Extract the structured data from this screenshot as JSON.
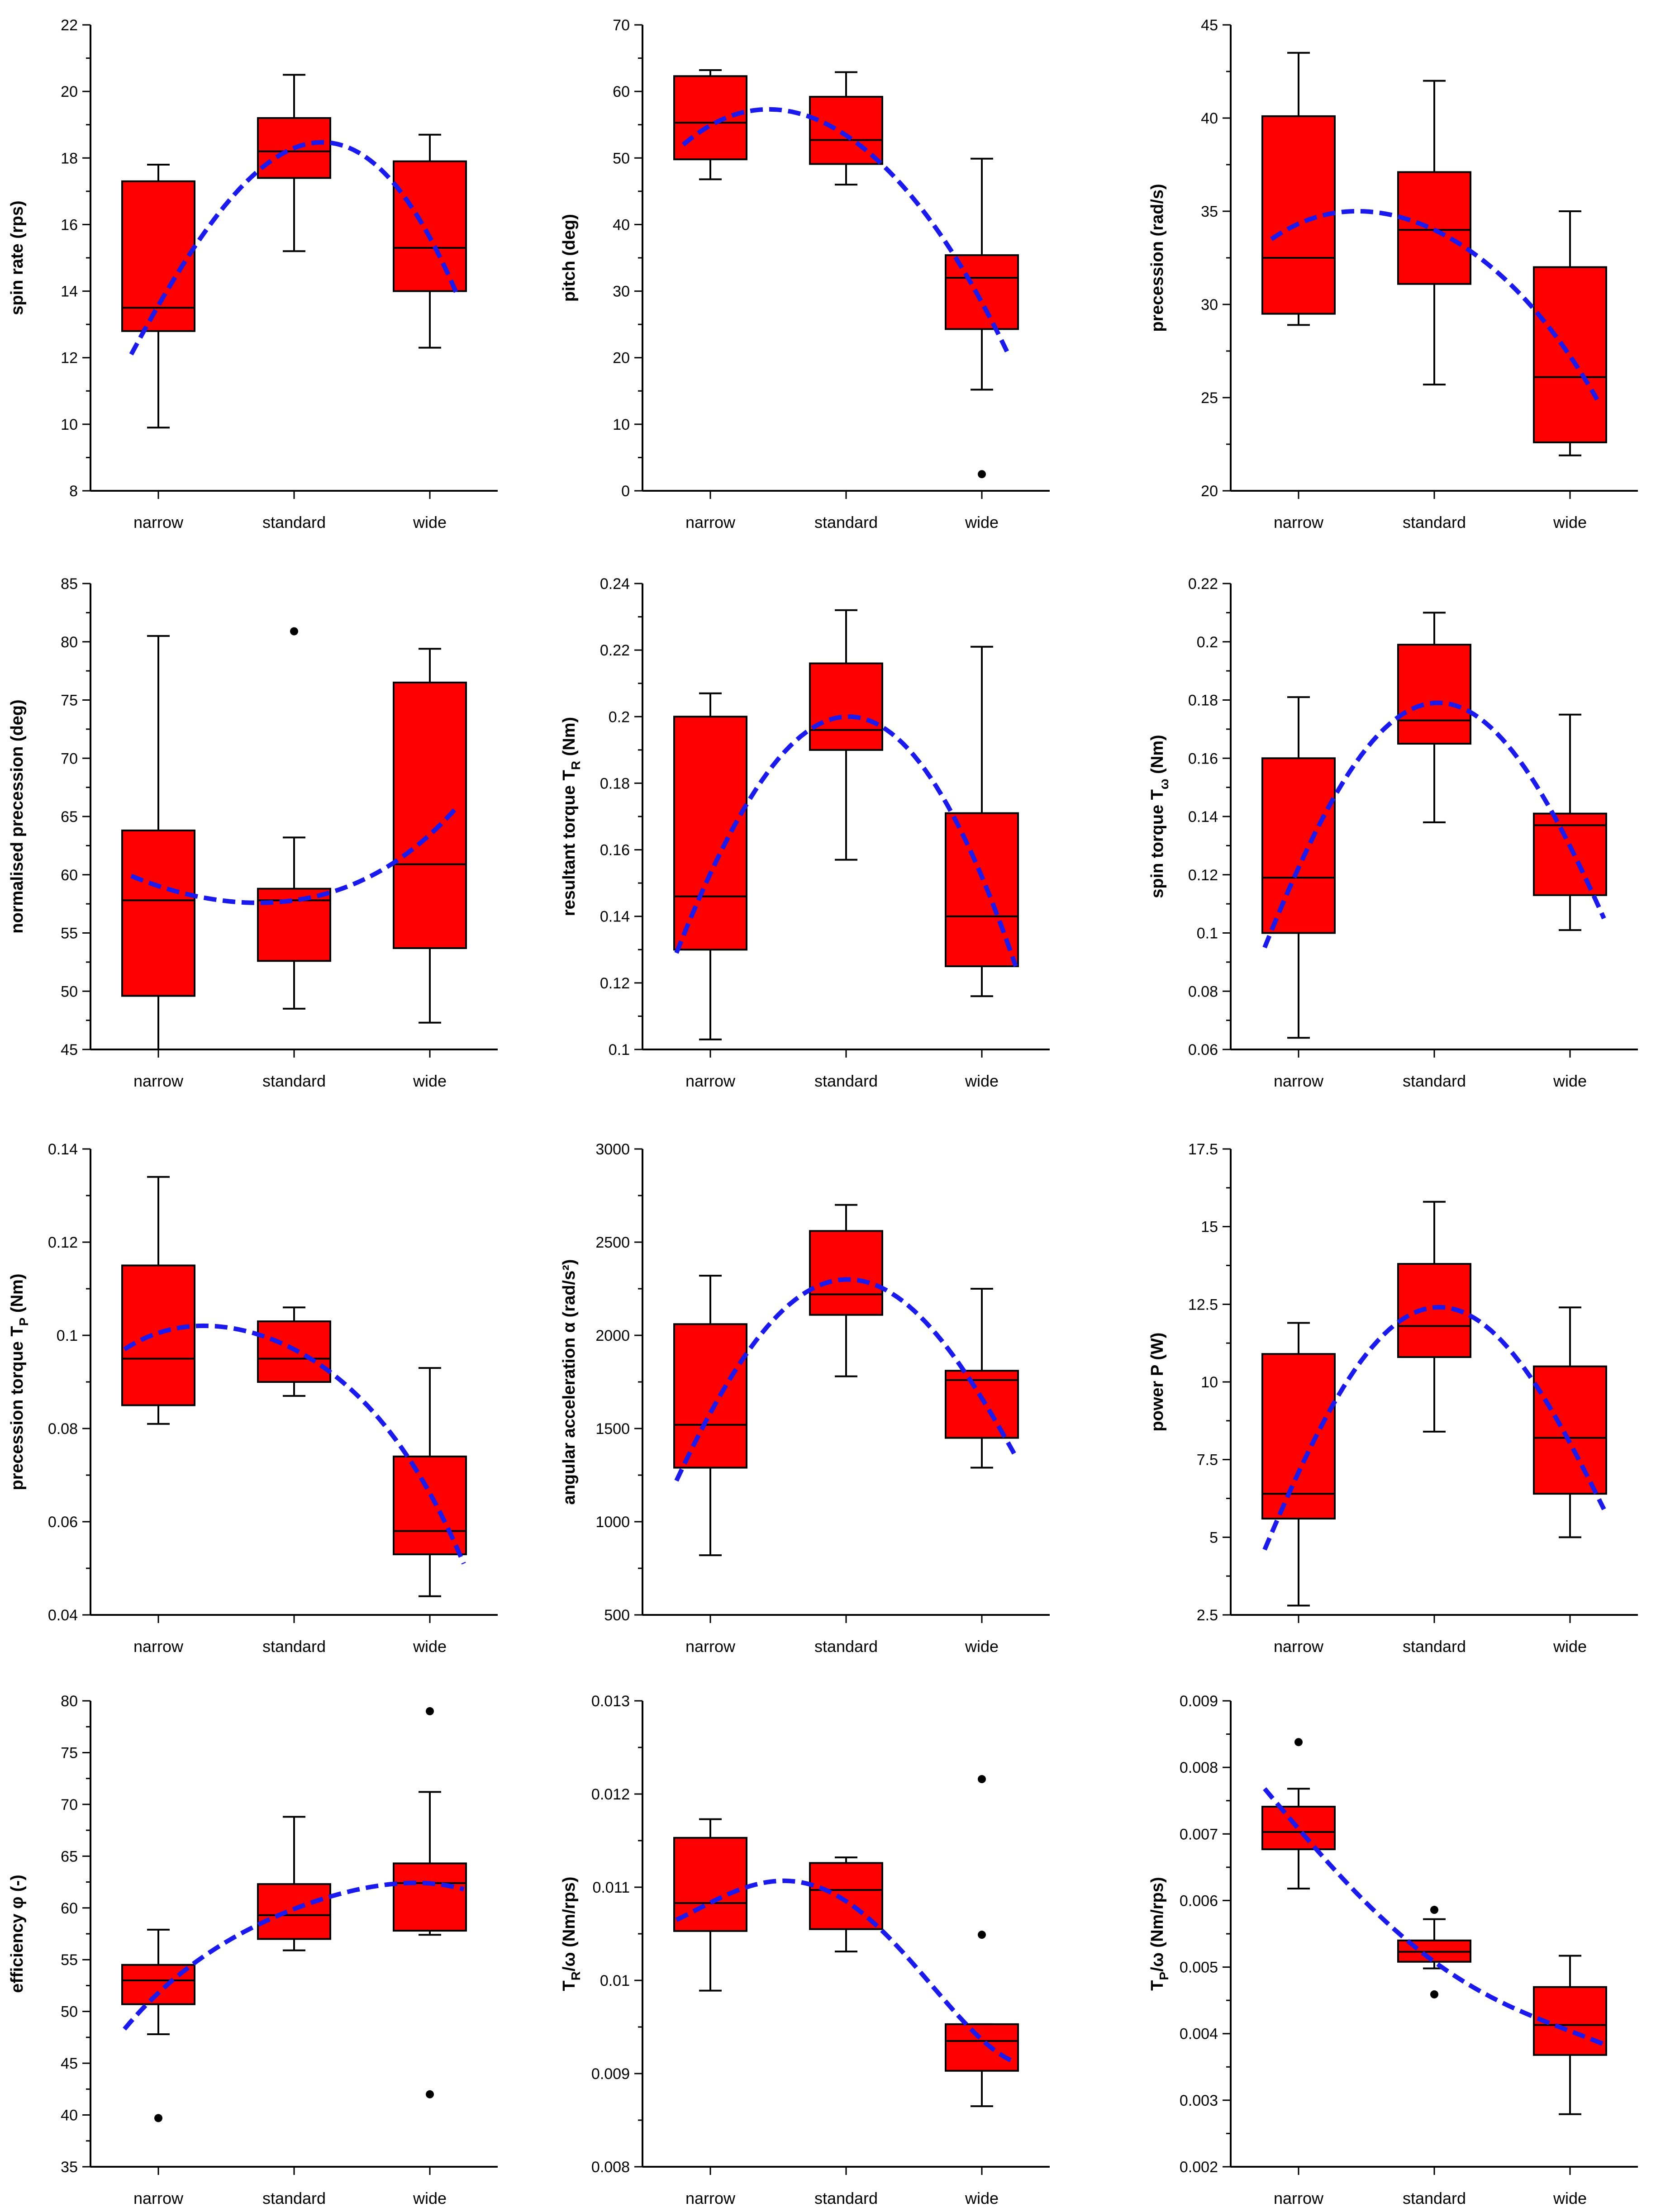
{
  "colors": {
    "box_fill": "#ff0000",
    "box_stroke": "#000000",
    "fit_line": "#1a1aee",
    "outlier": "#000000"
  },
  "chart_data": [
    {
      "type": "box",
      "id": "spin-rate",
      "ylabel": {
        "main": "spin rate (rps)"
      },
      "ylim": [
        8,
        22
      ],
      "yticks": [
        8,
        10,
        12,
        14,
        16,
        18,
        20,
        22
      ],
      "categories": [
        "narrow",
        "standard",
        "wide"
      ],
      "boxes": [
        {
          "min": 9.9,
          "q1": 12.8,
          "median": 13.5,
          "q3": 17.3,
          "max": 17.8,
          "outliers": []
        },
        {
          "min": 15.2,
          "q1": 17.4,
          "median": 18.2,
          "q3": 19.2,
          "max": 20.5,
          "outliers": []
        },
        {
          "min": 12.3,
          "q1": 14.0,
          "median": 15.3,
          "q3": 17.9,
          "max": 18.7,
          "outliers": []
        }
      ],
      "fit": {
        "x": [
          0.8,
          1.4,
          2.0,
          2.6,
          3.2
        ],
        "y": [
          12.1,
          16.1,
          18.3,
          17.8,
          13.9
        ]
      }
    },
    {
      "type": "box",
      "id": "pitch",
      "ylabel": {
        "main": "pitch (deg)"
      },
      "ylim": [
        0,
        70
      ],
      "yticks": [
        0,
        10,
        20,
        30,
        40,
        50,
        60,
        70
      ],
      "categories": [
        "narrow",
        "standard",
        "wide"
      ],
      "boxes": [
        {
          "min": 46.8,
          "q1": 49.8,
          "median": 55.3,
          "q3": 62.3,
          "max": 63.2,
          "outliers": []
        },
        {
          "min": 46.0,
          "q1": 49.1,
          "median": 52.7,
          "q3": 59.2,
          "max": 62.9,
          "outliers": []
        },
        {
          "min": 15.2,
          "q1": 24.3,
          "median": 32.0,
          "q3": 35.4,
          "max": 49.9,
          "outliers": [
            2.5
          ]
        }
      ],
      "fit": {
        "x": [
          0.8,
          1.4,
          2.0,
          2.6,
          3.2
        ],
        "y": [
          52.0,
          57.3,
          53.4,
          41.2,
          20.3
        ]
      }
    },
    {
      "type": "box",
      "id": "precession",
      "ylabel": {
        "main": "precession (rad/s)"
      },
      "ylim": [
        20,
        45
      ],
      "yticks": [
        20,
        25,
        30,
        35,
        40,
        45
      ],
      "categories": [
        "narrow",
        "standard",
        "wide"
      ],
      "boxes": [
        {
          "min": 28.9,
          "q1": 29.5,
          "median": 32.5,
          "q3": 40.1,
          "max": 43.5,
          "outliers": []
        },
        {
          "min": 25.7,
          "q1": 31.1,
          "median": 34.0,
          "q3": 37.1,
          "max": 42.0,
          "outliers": []
        },
        {
          "min": 21.9,
          "q1": 22.6,
          "median": 26.1,
          "q3": 32.0,
          "max": 35.0,
          "outliers": []
        }
      ],
      "fit": {
        "x": [
          0.8,
          1.4,
          2.0,
          2.6,
          3.2
        ],
        "y": [
          33.5,
          35.0,
          34.0,
          30.8,
          24.9
        ]
      }
    },
    {
      "type": "box",
      "id": "normalised-precession",
      "ylabel": {
        "main": "normalised precession (deg)"
      },
      "ylim": [
        45,
        85
      ],
      "yticks": [
        45,
        50,
        55,
        60,
        65,
        70,
        75,
        80,
        85
      ],
      "categories": [
        "narrow",
        "standard",
        "wide"
      ],
      "boxes": [
        {
          "min": 45.0,
          "q1": 49.6,
          "median": 57.8,
          "q3": 63.8,
          "max": 80.5,
          "outliers": []
        },
        {
          "min": 48.5,
          "q1": 52.6,
          "median": 57.8,
          "q3": 58.8,
          "max": 63.2,
          "outliers": [
            80.9
          ]
        },
        {
          "min": 47.3,
          "q1": 53.7,
          "median": 60.9,
          "q3": 76.5,
          "max": 79.4,
          "outliers": []
        }
      ],
      "fit": {
        "x": [
          0.8,
          1.4,
          2.0,
          2.6,
          3.2
        ],
        "y": [
          59.9,
          57.9,
          57.8,
          60.1,
          65.8
        ]
      }
    },
    {
      "type": "box",
      "id": "resultant-torque",
      "ylabel": {
        "main": "resultant torque T",
        "sub": "R",
        "rest": " (Nm)"
      },
      "ylim": [
        0.1,
        0.24
      ],
      "yticks": [
        0.1,
        0.12,
        0.14,
        0.16,
        0.18,
        0.2,
        0.22,
        0.24
      ],
      "categories": [
        "narrow",
        "standard",
        "wide"
      ],
      "boxes": [
        {
          "min": 0.103,
          "q1": 0.13,
          "median": 0.146,
          "q3": 0.2,
          "max": 0.207,
          "outliers": []
        },
        {
          "min": 0.157,
          "q1": 0.19,
          "median": 0.196,
          "q3": 0.216,
          "max": 0.232,
          "outliers": []
        },
        {
          "min": 0.116,
          "q1": 0.125,
          "median": 0.14,
          "q3": 0.171,
          "max": 0.221,
          "outliers": []
        }
      ],
      "fit": {
        "x": [
          0.75,
          1.4,
          2.0,
          2.6,
          3.25
        ],
        "y": [
          0.129,
          0.182,
          0.2,
          0.183,
          0.125
        ]
      }
    },
    {
      "type": "box",
      "id": "spin-torque",
      "ylabel": {
        "main": "spin torque T",
        "sub": "ω",
        "rest": " (Nm)"
      },
      "ylim": [
        0.06,
        0.22
      ],
      "yticks": [
        0.06,
        0.08,
        0.1,
        0.12,
        0.14,
        0.16,
        0.18,
        0.2,
        0.22
      ],
      "categories": [
        "narrow",
        "standard",
        "wide"
      ],
      "boxes": [
        {
          "min": 0.064,
          "q1": 0.1,
          "median": 0.119,
          "q3": 0.16,
          "max": 0.181,
          "outliers": []
        },
        {
          "min": 0.138,
          "q1": 0.165,
          "median": 0.173,
          "q3": 0.199,
          "max": 0.21,
          "outliers": []
        },
        {
          "min": 0.101,
          "q1": 0.113,
          "median": 0.137,
          "q3": 0.141,
          "max": 0.175,
          "outliers": []
        }
      ],
      "fit": {
        "x": [
          0.75,
          1.4,
          2.0,
          2.6,
          3.25
        ],
        "y": [
          0.095,
          0.157,
          0.179,
          0.161,
          0.105
        ]
      }
    },
    {
      "type": "box",
      "id": "precession-torque",
      "ylabel": {
        "main": "precession torque T",
        "sub": "P",
        "rest": " (Nm)"
      },
      "ylim": [
        0.04,
        0.14
      ],
      "yticks": [
        0.04,
        0.06,
        0.08,
        0.1,
        0.12,
        0.14
      ],
      "categories": [
        "narrow",
        "standard",
        "wide"
      ],
      "boxes": [
        {
          "min": 0.081,
          "q1": 0.085,
          "median": 0.095,
          "q3": 0.115,
          "max": 0.134,
          "outliers": []
        },
        {
          "min": 0.087,
          "q1": 0.09,
          "median": 0.095,
          "q3": 0.103,
          "max": 0.106,
          "outliers": []
        },
        {
          "min": 0.044,
          "q1": 0.053,
          "median": 0.058,
          "q3": 0.074,
          "max": 0.093,
          "outliers": []
        }
      ],
      "fit": {
        "x": [
          0.75,
          1.4,
          2.0,
          2.6,
          3.25
        ],
        "y": [
          0.097,
          0.102,
          0.097,
          0.083,
          0.051
        ]
      }
    },
    {
      "type": "box",
      "id": "angular-acceleration",
      "ylabel": {
        "main": "angular acceleration α (rad/s²)"
      },
      "ylim": [
        500,
        3000
      ],
      "yticks": [
        500,
        1000,
        1500,
        2000,
        2500,
        3000
      ],
      "categories": [
        "narrow",
        "standard",
        "wide"
      ],
      "boxes": [
        {
          "min": 820,
          "q1": 1290,
          "median": 1520,
          "q3": 2060,
          "max": 2320,
          "outliers": []
        },
        {
          "min": 1780,
          "q1": 2110,
          "median": 2220,
          "q3": 2560,
          "max": 2700,
          "outliers": []
        },
        {
          "min": 1290,
          "q1": 1450,
          "median": 1760,
          "q3": 1810,
          "max": 2250,
          "outliers": []
        }
      ],
      "fit": {
        "x": [
          0.75,
          1.4,
          2.0,
          2.6,
          3.25
        ],
        "y": [
          1220,
          2030,
          2300,
          2060,
          1350
        ]
      }
    },
    {
      "type": "box",
      "id": "power",
      "ylabel": {
        "main": "power P (W)"
      },
      "ylim": [
        2.5,
        17.5
      ],
      "yticks": [
        2.5,
        5,
        7.5,
        10,
        12.5,
        15,
        17.5
      ],
      "categories": [
        "narrow",
        "standard",
        "wide"
      ],
      "boxes": [
        {
          "min": 2.8,
          "q1": 5.6,
          "median": 6.4,
          "q3": 10.9,
          "max": 11.9,
          "outliers": []
        },
        {
          "min": 8.4,
          "q1": 10.8,
          "median": 11.8,
          "q3": 13.8,
          "max": 15.8,
          "outliers": []
        },
        {
          "min": 5.0,
          "q1": 6.4,
          "median": 8.2,
          "q3": 10.5,
          "max": 12.4,
          "outliers": []
        }
      ],
      "fit": {
        "x": [
          0.75,
          1.4,
          2.0,
          2.6,
          3.25
        ],
        "y": [
          4.6,
          10.3,
          12.4,
          10.8,
          5.9
        ]
      }
    },
    {
      "type": "box",
      "id": "efficiency",
      "ylabel": {
        "main": "efficiency φ (-)"
      },
      "ylim": [
        35,
        80
      ],
      "yticks": [
        35,
        40,
        45,
        50,
        55,
        60,
        65,
        70,
        75,
        80
      ],
      "categories": [
        "narrow",
        "standard",
        "wide"
      ],
      "boxes": [
        {
          "min": 47.8,
          "q1": 50.7,
          "median": 53.0,
          "q3": 54.5,
          "max": 57.9,
          "outliers": [
            39.7
          ]
        },
        {
          "min": 55.9,
          "q1": 57.0,
          "median": 59.3,
          "q3": 62.3,
          "max": 68.8,
          "outliers": []
        },
        {
          "min": 57.4,
          "q1": 57.8,
          "median": 62.4,
          "q3": 64.3,
          "max": 71.2,
          "outliers": [
            79.0,
            42.0
          ]
        }
      ],
      "fit": {
        "x": [
          0.75,
          1.4,
          2.0,
          2.6,
          3.25
        ],
        "y": [
          48.3,
          55.9,
          59.9,
          62.1,
          61.8
        ]
      }
    },
    {
      "type": "box",
      "id": "tr-over-omega",
      "ylabel": {
        "main": "T",
        "sub": "R",
        "rest": "/ω (Nm/rps)"
      },
      "ylim": [
        0.008,
        0.013
      ],
      "yticks": [
        0.008,
        0.009,
        0.01,
        0.011,
        0.012,
        0.013
      ],
      "categories": [
        "narrow",
        "standard",
        "wide"
      ],
      "boxes": [
        {
          "min": 0.00989,
          "q1": 0.01053,
          "median": 0.01083,
          "q3": 0.01153,
          "max": 0.01173,
          "outliers": []
        },
        {
          "min": 0.01031,
          "q1": 0.01055,
          "median": 0.01097,
          "q3": 0.01126,
          "max": 0.01132,
          "outliers": []
        },
        {
          "min": 0.00865,
          "q1": 0.00903,
          "median": 0.00935,
          "q3": 0.00953,
          "max": 0.00953,
          "outliers": [
            0.01216,
            0.01049
          ]
        }
      ],
      "fit": {
        "x": [
          0.75,
          1.4,
          2.0,
          2.6,
          3.25
        ],
        "y": [
          0.01065,
          0.01105,
          0.01085,
          0.01,
          0.00912
        ]
      }
    },
    {
      "type": "box",
      "id": "tp-over-omega",
      "ylabel": {
        "main": "T",
        "sub": "P",
        "rest": "/ω (Nm/rps)"
      },
      "ylim": [
        0.002,
        0.009
      ],
      "yticks": [
        0.002,
        0.003,
        0.004,
        0.005,
        0.006,
        0.007,
        0.008,
        0.009
      ],
      "categories": [
        "narrow",
        "standard",
        "wide"
      ],
      "boxes": [
        {
          "min": 0.00618,
          "q1": 0.00677,
          "median": 0.00703,
          "q3": 0.00741,
          "max": 0.00768,
          "outliers": [
            0.00838
          ]
        },
        {
          "min": 0.00498,
          "q1": 0.00508,
          "median": 0.00523,
          "q3": 0.0054,
          "max": 0.00572,
          "outliers": [
            0.00586,
            0.00459
          ]
        },
        {
          "min": 0.00279,
          "q1": 0.00368,
          "median": 0.00413,
          "q3": 0.0047,
          "max": 0.00517,
          "outliers": []
        }
      ],
      "fit": {
        "x": [
          0.75,
          1.4,
          2.0,
          2.6,
          3.25
        ],
        "y": [
          0.00768,
          0.00617,
          0.00508,
          0.00437,
          0.00384
        ]
      }
    }
  ]
}
